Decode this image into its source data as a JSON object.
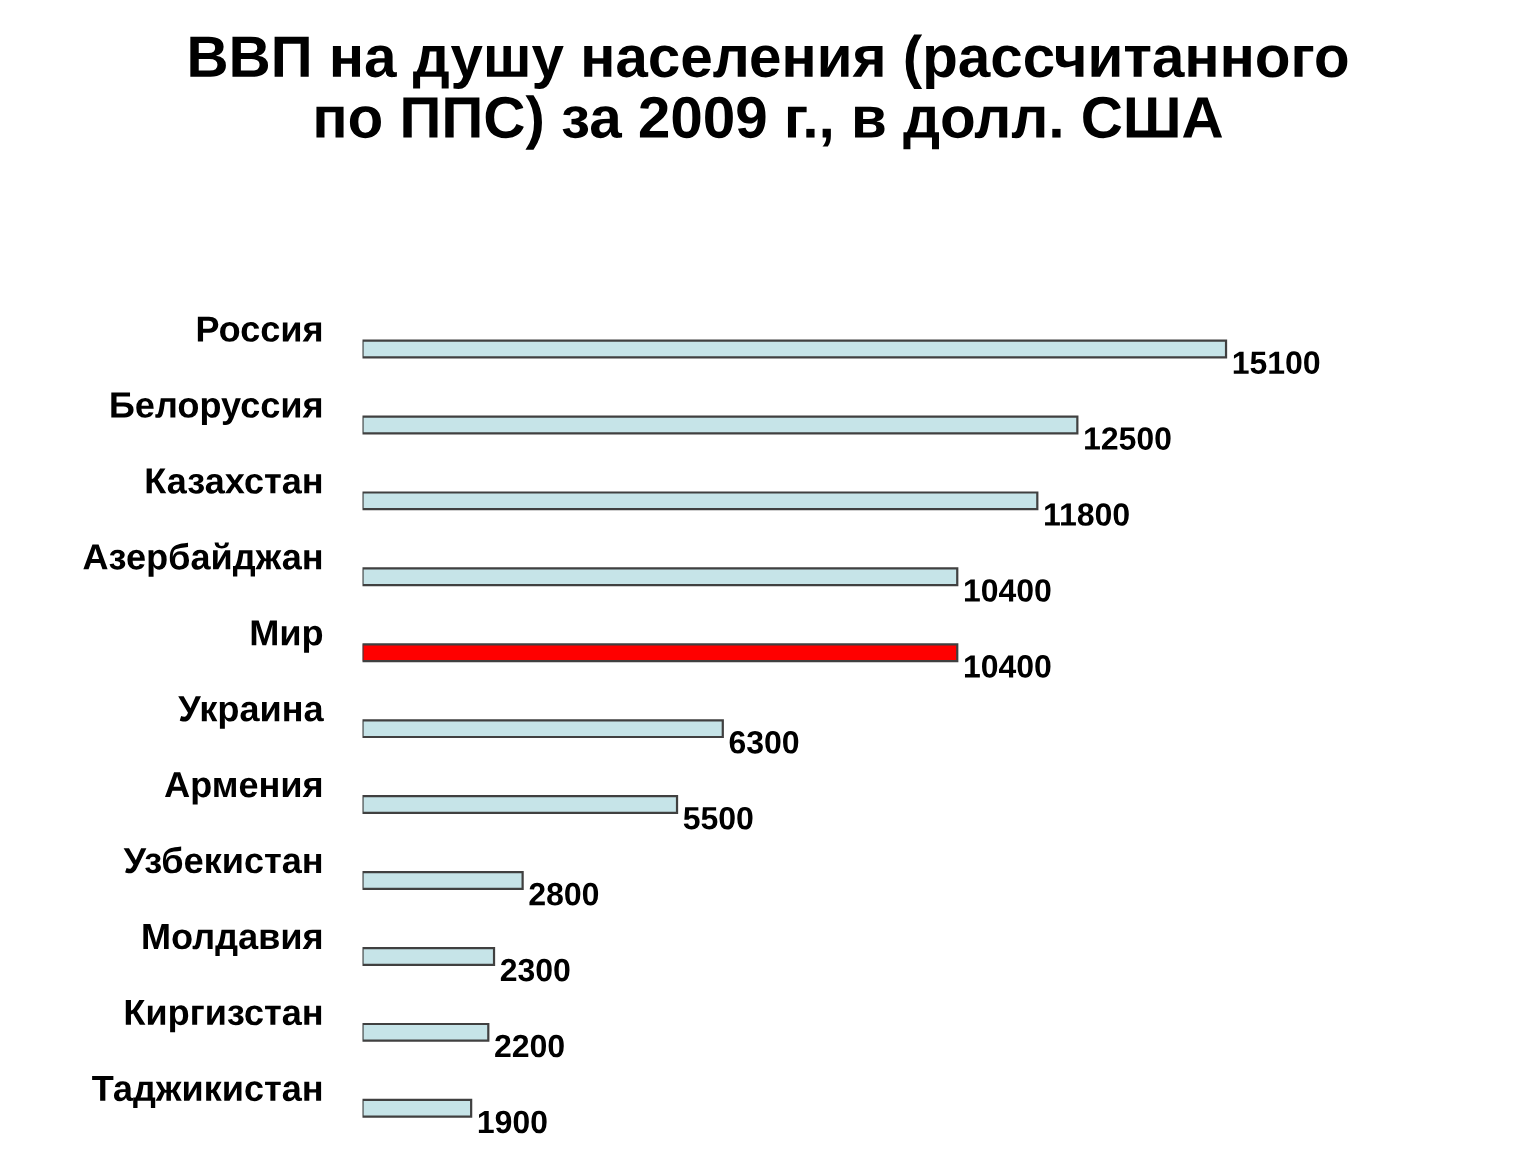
{
  "chart_data": {
    "type": "bar",
    "orientation": "horizontal",
    "title": "ВВП на душу населения (рассчитанного\nпо ППС) за 2009 г., в долл. США",
    "categories": [
      "Россия",
      "Белоруссия",
      "Казахстан",
      "Азербайджан",
      "Мир",
      "Украина",
      "Армения",
      "Узбекистан",
      "Молдавия",
      "Киргизстан",
      "Таджикистан"
    ],
    "values": [
      15100,
      12500,
      11800,
      10400,
      10400,
      6300,
      5500,
      2800,
      2300,
      2200,
      1900
    ],
    "colors": [
      "#c6e4e8",
      "#c6e4e8",
      "#c6e4e8",
      "#c6e4e8",
      "#ff0000",
      "#c6e4e8",
      "#c6e4e8",
      "#c6e4e8",
      "#c6e4e8",
      "#c6e4e8",
      "#c6e4e8"
    ],
    "data_labels": true,
    "tick_labels": "y",
    "grid": false,
    "legend": false
  }
}
